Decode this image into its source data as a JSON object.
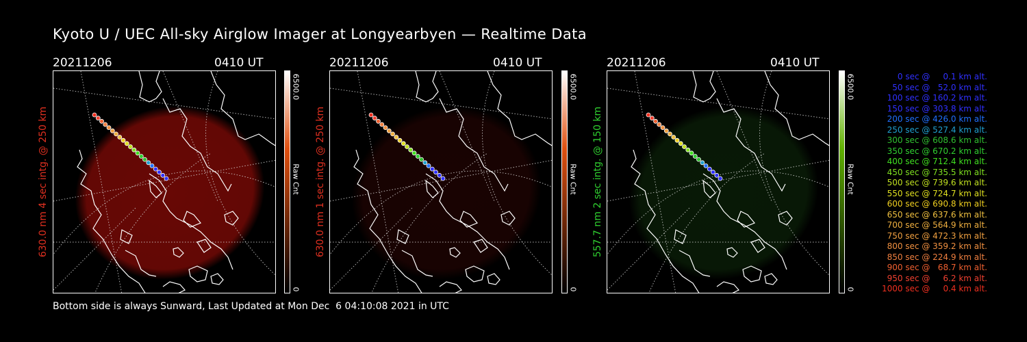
{
  "title": "Kyoto U / UEC All-sky Airglow Imager at Longyearbyen — Realtime Data",
  "footer": "Bottom side is always Sunward, Last Updated at Mon Dec  6 04:10:08 2021 in UTC",
  "colors": {
    "red_label": "#e03020",
    "green_label": "#30d030"
  },
  "panels": [
    {
      "date": "20211206",
      "time": "0410 UT",
      "side_label": "630.0 nm  4 sec intg. @ 250 km",
      "label_color": "#e03020",
      "colorbar_max": "6500.0",
      "colorbar_min": "0",
      "colorbar_unit": "Raw Cnt",
      "colorbar_top": "#ffffff",
      "colorbar_mid": "#e05010",
      "colorbar_bottom": "#000000",
      "glow_color": "#7a0a06",
      "glow_level": 0.85
    },
    {
      "date": "20211206",
      "time": "0410 UT",
      "side_label": "630.0 nm  1 sec intg. @ 250 km",
      "label_color": "#e03020",
      "colorbar_max": "6500.0",
      "colorbar_min": "0",
      "colorbar_unit": "Raw Cnt",
      "colorbar_top": "#ffffff",
      "colorbar_mid": "#e05010",
      "colorbar_bottom": "#000000",
      "glow_color": "#2a0503",
      "glow_level": 0.6
    },
    {
      "date": "20211206",
      "time": "0410 UT",
      "side_label": "557.7 nm  2 sec intg. @ 150 km",
      "label_color": "#30d030",
      "colorbar_max": "6500.0",
      "colorbar_min": "0",
      "colorbar_unit": "Raw Cnt",
      "colorbar_top": "#ffffff",
      "colorbar_mid": "#60b000",
      "colorbar_bottom": "#000000",
      "glow_color": "#0e2a0a",
      "glow_level": 0.6
    }
  ],
  "legend": [
    {
      "text": "   0 sec @     0.1 km alt.",
      "color": "#3030ff"
    },
    {
      "text": "  50 sec @   52.0 km alt.",
      "color": "#3030ff"
    },
    {
      "text": " 100 sec @ 160.2 km alt.",
      "color": "#3030ff"
    },
    {
      "text": " 150 sec @ 303.8 km alt.",
      "color": "#3030ff"
    },
    {
      "text": " 200 sec @ 426.0 km alt.",
      "color": "#2070ff"
    },
    {
      "text": " 250 sec @ 527.4 km alt.",
      "color": "#20a0d0"
    },
    {
      "text": " 300 sec @ 608.6 km alt.",
      "color": "#30c030"
    },
    {
      "text": " 350 sec @ 670.2 km alt.",
      "color": "#30d030"
    },
    {
      "text": " 400 sec @ 712.4 km alt.",
      "color": "#40e020"
    },
    {
      "text": " 450 sec @ 735.5 km alt.",
      "color": "#80e020"
    },
    {
      "text": " 500 sec @ 739.6 km alt.",
      "color": "#c0e020"
    },
    {
      "text": " 550 sec @ 724.7 km alt.",
      "color": "#e0e020"
    },
    {
      "text": " 600 sec @ 690.8 km alt.",
      "color": "#f0d020"
    },
    {
      "text": " 650 sec @ 637.6 km alt.",
      "color": "#f0c040"
    },
    {
      "text": " 700 sec @ 564.9 km alt.",
      "color": "#f0b040"
    },
    {
      "text": " 750 sec @ 472.3 km alt.",
      "color": "#f0a040"
    },
    {
      "text": " 800 sec @ 359.2 km alt.",
      "color": "#f09040"
    },
    {
      "text": " 850 sec @ 224.9 km alt.",
      "color": "#f08040"
    },
    {
      "text": " 900 sec @   68.7 km alt.",
      "color": "#f06030"
    },
    {
      "text": " 950 sec @     6.2 km alt.",
      "color": "#f04030"
    },
    {
      "text": "1000 sec @     0.4 km alt.",
      "color": "#f03020"
    }
  ]
}
